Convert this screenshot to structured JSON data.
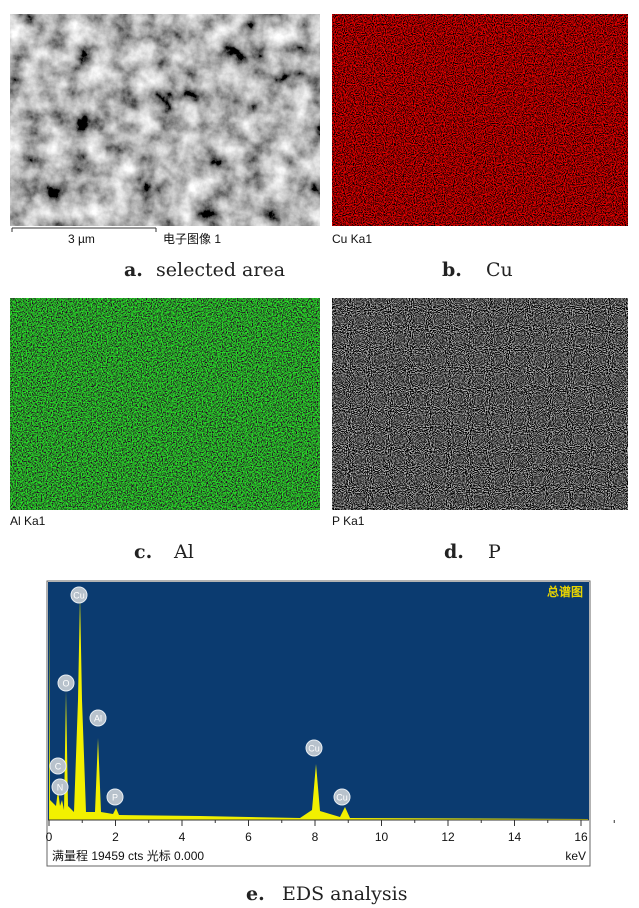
{
  "panels": [
    {
      "letter": "a.",
      "caption": "selected area",
      "image_label": "电子图像 1",
      "scale_bar": "3 µm"
    },
    {
      "letter": "b.",
      "caption": "Cu",
      "image_label": "Cu Ka1"
    },
    {
      "letter": "c.",
      "caption": "Al",
      "image_label": "Al Ka1"
    },
    {
      "letter": "d.",
      "caption": "P",
      "image_label": "P Ka1"
    }
  ],
  "spectrum": {
    "title": "总谱图",
    "xticks": [
      "0",
      "2",
      "4",
      "6",
      "8",
      "10",
      "12",
      "14",
      "16"
    ],
    "peaks": [
      "Cu",
      "O",
      "Al",
      "C",
      "N",
      "P",
      "Cu",
      "Cu"
    ],
    "footer": "满量程 19459 cts 光标 0.000",
    "unit": "keV",
    "letter": "e.",
    "caption": "EDS analysis"
  }
}
